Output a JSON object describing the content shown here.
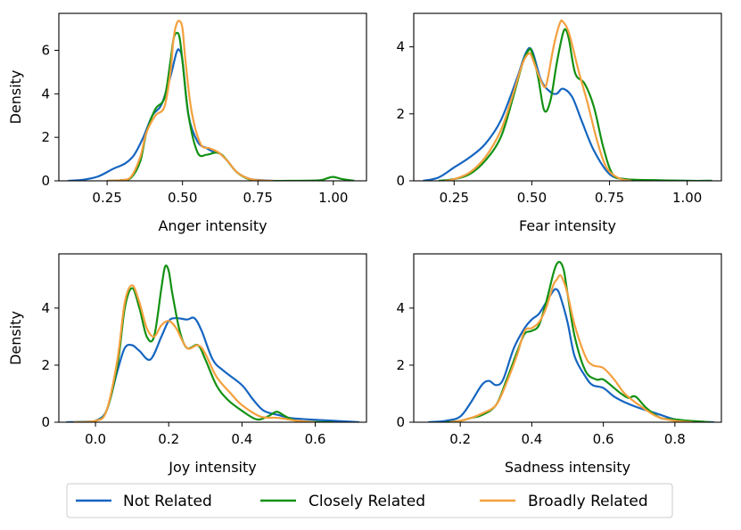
{
  "colors": {
    "not_related": "#1565c0",
    "closely_related": "#139113",
    "broadly_related": "#f4a03e"
  },
  "legend": {
    "location": "bottom-center",
    "labels": [
      "Not Related",
      "Closely Related",
      "Broadly Related"
    ]
  },
  "chart_data": [
    {
      "type": "line",
      "subtype": "kde",
      "title": "",
      "xlabel": "Anger intensity",
      "ylabel": "Density",
      "xlim": [
        0.09,
        1.11
      ],
      "ylim": [
        0,
        7.7
      ],
      "xticks": [
        0.25,
        0.5,
        0.75,
        1.0
      ],
      "xtick_labels": [
        "0.25",
        "0.50",
        "0.75",
        "1.00"
      ],
      "yticks": [
        0,
        2,
        4,
        6
      ],
      "series": [
        {
          "name": "Not Related",
          "x": [
            0.12,
            0.17,
            0.22,
            0.27,
            0.31,
            0.34,
            0.37,
            0.4,
            0.43,
            0.46,
            0.48,
            0.49,
            0.5,
            0.52,
            0.55,
            0.58,
            0.6,
            0.62,
            0.65,
            0.68,
            0.72,
            0.76,
            0.8
          ],
          "y": [
            0,
            0.05,
            0.2,
            0.55,
            0.8,
            1.2,
            2.0,
            3.0,
            3.5,
            4.8,
            5.9,
            6.0,
            5.5,
            3.0,
            1.8,
            1.5,
            1.35,
            1.3,
            0.9,
            0.4,
            0.1,
            0.03,
            0
          ]
        },
        {
          "name": "Closely Related",
          "x": [
            0.25,
            0.3,
            0.33,
            0.36,
            0.38,
            0.41,
            0.44,
            0.46,
            0.47,
            0.48,
            0.49,
            0.5,
            0.52,
            0.55,
            0.58,
            0.61,
            0.63,
            0.65,
            0.68,
            0.72,
            0.77,
            0.85,
            0.95,
            0.98,
            1.0,
            1.03,
            1.07
          ],
          "y": [
            0,
            0.03,
            0.15,
            0.9,
            2.2,
            3.3,
            3.8,
            5.5,
            6.5,
            6.8,
            6.6,
            5.5,
            3.0,
            1.3,
            1.2,
            1.3,
            1.2,
            0.9,
            0.4,
            0.08,
            0,
            0,
            0.02,
            0.12,
            0.18,
            0.08,
            0
          ]
        },
        {
          "name": "Broadly Related",
          "x": [
            0.25,
            0.3,
            0.33,
            0.36,
            0.38,
            0.41,
            0.44,
            0.46,
            0.47,
            0.48,
            0.49,
            0.5,
            0.51,
            0.53,
            0.56,
            0.59,
            0.62,
            0.65,
            0.68,
            0.72,
            0.76,
            0.8
          ],
          "y": [
            0,
            0.03,
            0.2,
            1.1,
            2.2,
            3.0,
            3.4,
            5.0,
            6.5,
            7.2,
            7.35,
            7.0,
            5.5,
            3.2,
            1.7,
            1.5,
            1.3,
            0.9,
            0.4,
            0.1,
            0.02,
            0
          ]
        }
      ]
    },
    {
      "type": "line",
      "subtype": "kde",
      "title": "",
      "xlabel": "Fear intensity",
      "ylabel": "",
      "xlim": [
        0.12,
        1.11
      ],
      "ylim": [
        0,
        5.0
      ],
      "xticks": [
        0.25,
        0.5,
        0.75,
        1.0
      ],
      "xtick_labels": [
        "0.25",
        "0.50",
        "0.75",
        "1.00"
      ],
      "yticks": [
        0,
        2,
        4
      ],
      "series": [
        {
          "name": "Not Related",
          "x": [
            0.15,
            0.2,
            0.25,
            0.3,
            0.35,
            0.4,
            0.45,
            0.48,
            0.5,
            0.53,
            0.56,
            0.58,
            0.6,
            0.63,
            0.66,
            0.7,
            0.75,
            0.8,
            0.85,
            1.0,
            1.08
          ],
          "y": [
            0,
            0.1,
            0.4,
            0.7,
            1.1,
            1.8,
            3.0,
            3.8,
            3.9,
            3.0,
            2.65,
            2.6,
            2.75,
            2.5,
            1.8,
            0.9,
            0.2,
            0.05,
            0.02,
            0,
            0
          ]
        },
        {
          "name": "Closely Related",
          "x": [
            0.2,
            0.25,
            0.3,
            0.35,
            0.4,
            0.44,
            0.47,
            0.49,
            0.5,
            0.52,
            0.54,
            0.56,
            0.58,
            0.6,
            0.61,
            0.62,
            0.64,
            0.67,
            0.7,
            0.73,
            0.76,
            0.8,
            0.9,
            1.0,
            1.08
          ],
          "y": [
            0,
            0.05,
            0.2,
            0.6,
            1.3,
            2.5,
            3.5,
            3.9,
            3.85,
            3.1,
            2.1,
            2.4,
            3.5,
            4.4,
            4.5,
            4.2,
            3.2,
            2.9,
            2.2,
            1.0,
            0.2,
            0.05,
            0.02,
            0,
            0
          ]
        },
        {
          "name": "Broadly Related",
          "x": [
            0.22,
            0.25,
            0.3,
            0.35,
            0.4,
            0.44,
            0.47,
            0.49,
            0.5,
            0.52,
            0.54,
            0.55,
            0.57,
            0.59,
            0.6,
            0.62,
            0.65,
            0.68,
            0.71,
            0.74,
            0.78,
            0.82
          ],
          "y": [
            0,
            0.05,
            0.25,
            0.7,
            1.5,
            2.6,
            3.5,
            3.8,
            3.7,
            3.2,
            2.8,
            3.0,
            4.0,
            4.7,
            4.75,
            4.4,
            3.3,
            2.3,
            1.2,
            0.4,
            0.08,
            0
          ]
        }
      ]
    },
    {
      "type": "line",
      "subtype": "kde",
      "title": "",
      "xlabel": "Joy intensity",
      "ylabel": "Density",
      "xlim": [
        -0.1,
        0.74
      ],
      "ylim": [
        0,
        5.9
      ],
      "xticks": [
        0.0,
        0.2,
        0.4,
        0.6
      ],
      "xtick_labels": [
        "0.0",
        "0.2",
        "0.4",
        "0.6"
      ],
      "yticks": [
        0,
        2,
        4
      ],
      "series": [
        {
          "name": "Not Related",
          "x": [
            -0.08,
            -0.02,
            0.0,
            0.03,
            0.06,
            0.08,
            0.1,
            0.12,
            0.15,
            0.18,
            0.2,
            0.22,
            0.25,
            0.27,
            0.29,
            0.32,
            0.35,
            0.4,
            0.43,
            0.46,
            0.5,
            0.53,
            0.58,
            0.65,
            0.72
          ],
          "y": [
            0,
            0.02,
            0.05,
            0.4,
            1.8,
            2.6,
            2.7,
            2.5,
            2.2,
            3.0,
            3.55,
            3.65,
            3.6,
            3.65,
            3.2,
            2.2,
            1.8,
            1.3,
            0.8,
            0.4,
            0.25,
            0.15,
            0.1,
            0.05,
            0
          ]
        },
        {
          "name": "Closely Related",
          "x": [
            -0.06,
            0.0,
            0.03,
            0.06,
            0.08,
            0.1,
            0.12,
            0.14,
            0.16,
            0.18,
            0.19,
            0.2,
            0.21,
            0.23,
            0.25,
            0.28,
            0.3,
            0.33,
            0.36,
            0.4,
            0.44,
            0.47,
            0.49,
            0.5,
            0.52,
            0.55,
            0.6,
            0.65
          ],
          "y": [
            0,
            0.05,
            0.4,
            2.0,
            4.0,
            4.7,
            4.0,
            3.0,
            3.0,
            4.7,
            5.45,
            5.3,
            4.5,
            3.2,
            2.6,
            2.7,
            2.2,
            1.3,
            0.8,
            0.4,
            0.1,
            0.2,
            0.35,
            0.35,
            0.2,
            0.05,
            0.01,
            0
          ]
        },
        {
          "name": "Broadly Related",
          "x": [
            -0.06,
            0.0,
            0.03,
            0.06,
            0.08,
            0.1,
            0.12,
            0.14,
            0.16,
            0.18,
            0.2,
            0.22,
            0.25,
            0.28,
            0.3,
            0.33,
            0.37,
            0.4,
            0.45,
            0.5,
            0.55,
            0.6
          ],
          "y": [
            0,
            0.05,
            0.4,
            2.2,
            4.2,
            4.8,
            4.2,
            3.3,
            3.0,
            3.4,
            3.55,
            3.3,
            2.6,
            2.7,
            2.4,
            1.6,
            1.0,
            0.6,
            0.2,
            0.15,
            0.05,
            0
          ]
        }
      ]
    },
    {
      "type": "line",
      "subtype": "kde",
      "title": "",
      "xlabel": "Sadness intensity",
      "ylabel": "",
      "xlim": [
        0.07,
        0.93
      ],
      "ylim": [
        0,
        5.9
      ],
      "xticks": [
        0.2,
        0.4,
        0.6,
        0.8
      ],
      "xtick_labels": [
        "0.2",
        "0.4",
        "0.6",
        "0.8"
      ],
      "yticks": [
        0,
        2,
        4
      ],
      "series": [
        {
          "name": "Not Related",
          "x": [
            0.11,
            0.16,
            0.2,
            0.23,
            0.26,
            0.28,
            0.3,
            0.32,
            0.35,
            0.38,
            0.4,
            0.42,
            0.44,
            0.46,
            0.47,
            0.48,
            0.5,
            0.52,
            0.55,
            0.57,
            0.6,
            0.63,
            0.66,
            0.7,
            0.75,
            0.8,
            0.85,
            0.91
          ],
          "y": [
            0,
            0.05,
            0.2,
            0.7,
            1.3,
            1.45,
            1.3,
            1.5,
            2.6,
            3.3,
            3.6,
            3.8,
            4.2,
            4.6,
            4.65,
            4.4,
            3.5,
            2.3,
            1.6,
            1.3,
            1.2,
            0.9,
            0.7,
            0.5,
            0.3,
            0.1,
            0.03,
            0
          ]
        },
        {
          "name": "Closely Related",
          "x": [
            0.16,
            0.2,
            0.23,
            0.26,
            0.3,
            0.33,
            0.36,
            0.38,
            0.4,
            0.42,
            0.44,
            0.46,
            0.47,
            0.48,
            0.49,
            0.5,
            0.52,
            0.55,
            0.58,
            0.6,
            0.63,
            0.65,
            0.67,
            0.69,
            0.72,
            0.76,
            0.8,
            0.84,
            0.9
          ],
          "y": [
            0,
            0.05,
            0.15,
            0.25,
            0.6,
            1.5,
            2.5,
            3.1,
            3.2,
            3.4,
            4.2,
            5.2,
            5.55,
            5.6,
            5.3,
            4.5,
            3.0,
            1.8,
            1.5,
            1.5,
            1.2,
            1.0,
            0.85,
            0.9,
            0.5,
            0.15,
            0.1,
            0.05,
            0
          ]
        },
        {
          "name": "Broadly Related",
          "x": [
            0.17,
            0.2,
            0.23,
            0.26,
            0.3,
            0.33,
            0.36,
            0.38,
            0.4,
            0.42,
            0.44,
            0.46,
            0.47,
            0.48,
            0.49,
            0.5,
            0.52,
            0.55,
            0.57,
            0.6,
            0.63,
            0.66,
            0.7,
            0.75,
            0.8,
            0.85
          ],
          "y": [
            0,
            0.05,
            0.15,
            0.3,
            0.6,
            1.4,
            2.4,
            3.2,
            3.3,
            3.5,
            4.0,
            4.8,
            5.0,
            5.15,
            4.9,
            4.5,
            3.4,
            2.3,
            2.0,
            1.9,
            1.5,
            1.0,
            0.6,
            0.2,
            0.05,
            0
          ]
        }
      ]
    }
  ]
}
